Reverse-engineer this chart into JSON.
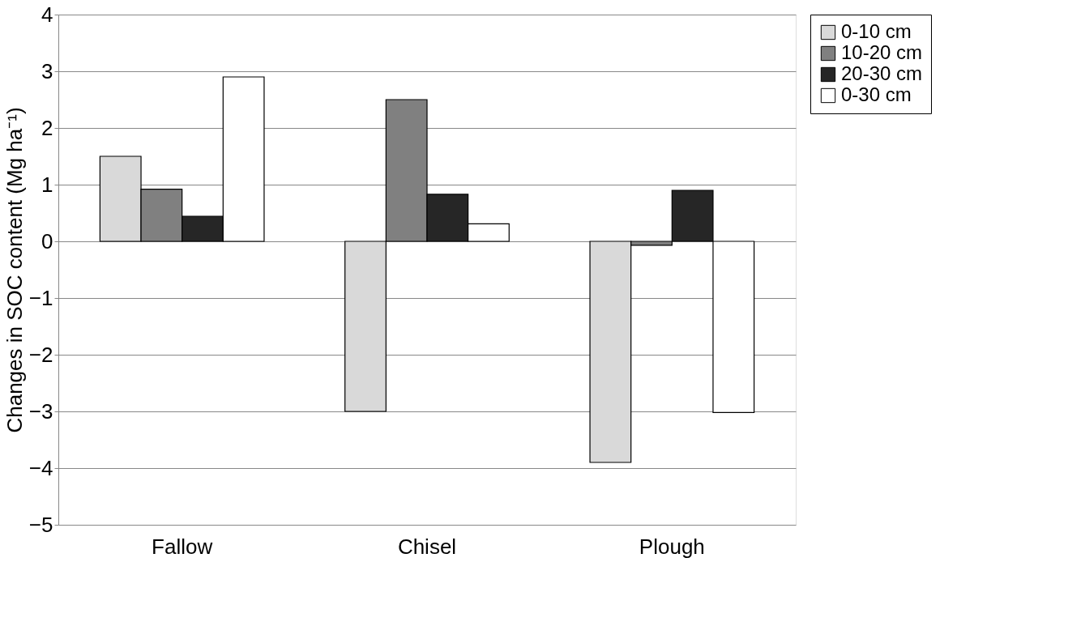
{
  "chart_data": {
    "type": "bar",
    "ylabel": "Changes in SOC content (Mg ha⁻¹)",
    "categories": [
      "Fallow",
      "Chisel",
      "Plough"
    ],
    "series": [
      {
        "name": "0-10 cm",
        "color": "#d9d9d9",
        "values": [
          1.5,
          -3.0,
          -3.9
        ]
      },
      {
        "name": "10-20 cm",
        "color": "#808080",
        "values": [
          0.92,
          2.5,
          -0.07
        ]
      },
      {
        "name": "20-30 cm",
        "color": "#262626",
        "values": [
          0.44,
          0.83,
          0.9
        ]
      },
      {
        "name": "0-30 cm",
        "color": "#ffffff",
        "values": [
          2.9,
          0.31,
          -3.02
        ]
      }
    ],
    "ylim": [
      -5,
      4
    ],
    "yticks": [
      -5,
      -4,
      -3,
      -2,
      -1,
      0,
      1,
      2,
      3,
      4
    ],
    "grid": "y",
    "legend": "right"
  }
}
